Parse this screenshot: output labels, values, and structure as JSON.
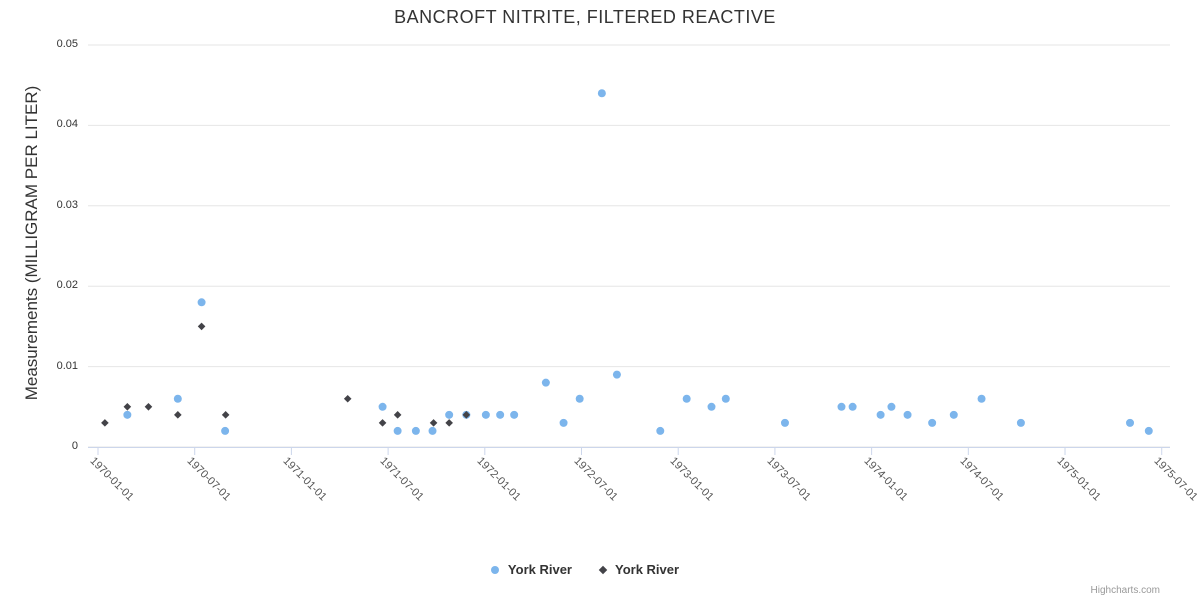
{
  "chart": {
    "title": "BANCROFT NITRITE, FILTERED REACTIVE",
    "credits": "Highcharts.com"
  },
  "colors": {
    "series_blue": "#7cb5ec",
    "series_dark": "#434348",
    "gridline": "#e6e6e6",
    "axis_line": "#ccd6eb",
    "title_text": "#333333",
    "tick_label": "#555555",
    "credits_text": "#999999"
  },
  "chart_data": {
    "type": "scatter",
    "title": "BANCROFT NITRITE, FILTERED REACTIVE",
    "xlabel": "",
    "ylabel": "Measurements (MILLIGRAM PER LITER)",
    "ylim": [
      0,
      0.05
    ],
    "yticks": [
      0,
      0.01,
      0.02,
      0.03,
      0.04,
      0.05
    ],
    "ytick_labels": [
      "0",
      "0.01",
      "0.02",
      "0.03",
      "0.04",
      "0.05"
    ],
    "xticks": [
      "1970-01-01",
      "1970-07-01",
      "1971-01-01",
      "1971-07-01",
      "1972-01-01",
      "1972-07-01",
      "1973-01-01",
      "1973-07-01",
      "1974-01-01",
      "1974-07-01",
      "1975-01-01",
      "1975-07-01"
    ],
    "grid": true,
    "legend_position": "bottom-center",
    "series": [
      {
        "name": "York River",
        "marker": "circle",
        "color": "#7cb5ec",
        "points": [
          [
            "1970-02-26",
            0.004
          ],
          [
            "1970-05-30",
            0.006
          ],
          [
            "1970-07-14",
            0.018
          ],
          [
            "1970-08-28",
            0.002
          ],
          [
            "1971-06-21",
            0.005
          ],
          [
            "1971-07-19",
            0.002
          ],
          [
            "1971-08-23",
            0.002
          ],
          [
            "1971-09-24",
            0.002
          ],
          [
            "1971-10-25",
            0.004
          ],
          [
            "1971-11-27",
            0.004
          ],
          [
            "1972-01-03",
            0.004
          ],
          [
            "1972-01-30",
            0.004
          ],
          [
            "1972-02-26",
            0.004
          ],
          [
            "1972-04-25",
            0.008
          ],
          [
            "1972-05-28",
            0.003
          ],
          [
            "1972-06-28",
            0.006
          ],
          [
            "1972-08-09",
            0.044
          ],
          [
            "1972-09-07",
            0.009
          ],
          [
            "1972-11-28",
            0.002
          ],
          [
            "1973-01-17",
            0.006
          ],
          [
            "1973-03-03",
            0.005
          ],
          [
            "1973-03-30",
            0.006
          ],
          [
            "1973-07-20",
            0.003
          ],
          [
            "1973-11-05",
            0.005
          ],
          [
            "1973-11-26",
            0.005
          ],
          [
            "1974-01-18",
            0.004
          ],
          [
            "1974-02-08",
            0.005
          ],
          [
            "1974-03-08",
            0.004
          ],
          [
            "1974-04-24",
            0.003
          ],
          [
            "1974-06-04",
            0.004
          ],
          [
            "1974-07-26",
            0.006
          ],
          [
            "1974-10-09",
            0.003
          ],
          [
            "1975-05-02",
            0.003
          ],
          [
            "1975-06-07",
            0.002
          ]
        ]
      },
      {
        "name": "York River",
        "marker": "diamond",
        "color": "#434348",
        "points": [
          [
            "1970-01-14",
            0.003
          ],
          [
            "1970-02-26",
            0.005
          ],
          [
            "1970-04-05",
            0.005
          ],
          [
            "1970-05-30",
            0.004
          ],
          [
            "1970-07-14",
            0.015
          ],
          [
            "1970-08-29",
            0.004
          ],
          [
            "1971-04-16",
            0.006
          ],
          [
            "1971-06-21",
            0.003
          ],
          [
            "1971-07-19",
            0.004
          ],
          [
            "1971-09-26",
            0.003
          ],
          [
            "1971-10-25",
            0.003
          ],
          [
            "1971-11-27",
            0.004
          ]
        ]
      }
    ]
  }
}
